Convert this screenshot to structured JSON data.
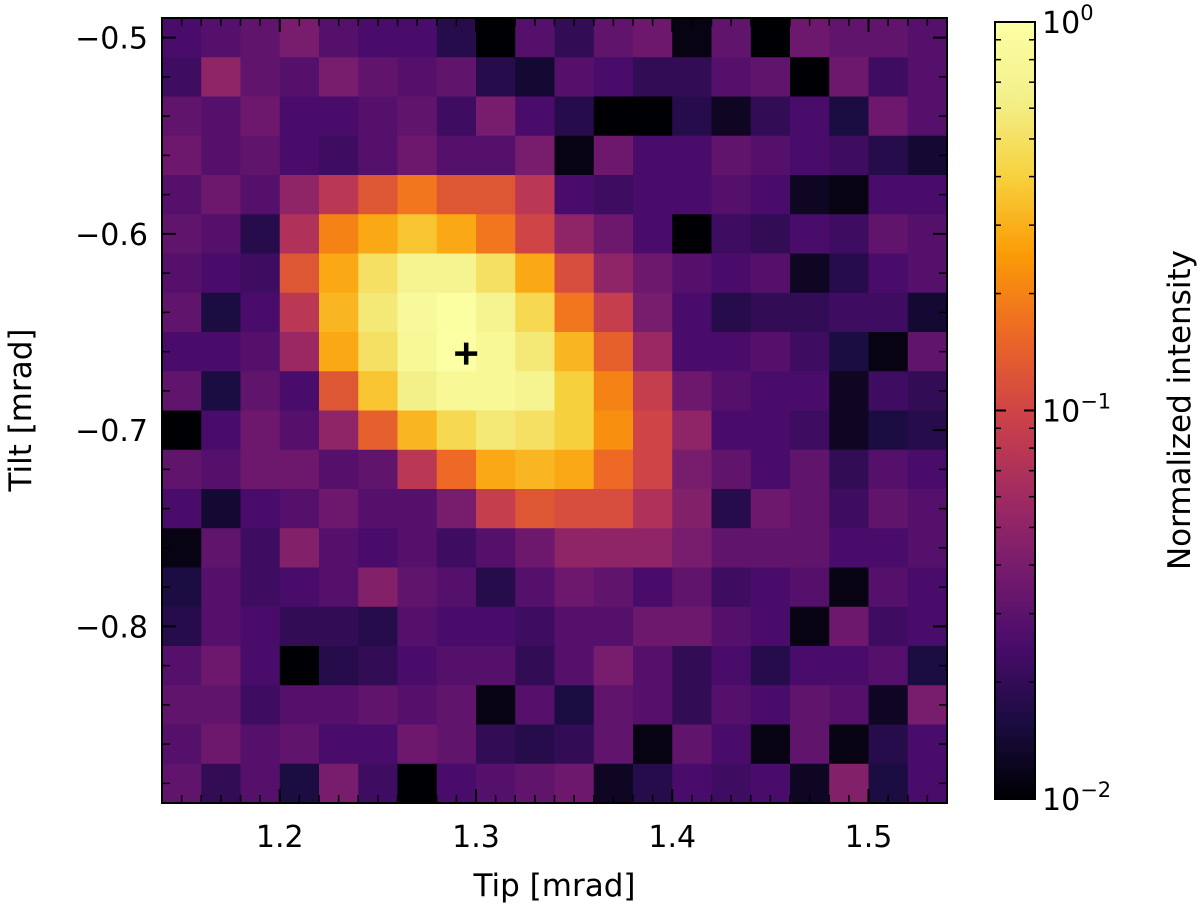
{
  "chart_data": {
    "type": "heatmap",
    "xlabel": "Tip [mrad]",
    "ylabel": "Tilt [mrad]",
    "xlim": [
      1.14,
      1.54
    ],
    "ylim": [
      -0.89,
      -0.49
    ],
    "x_ticks": [
      1.2,
      1.3,
      1.4,
      1.5
    ],
    "x_tick_labels": [
      "1.2",
      "1.3",
      "1.4",
      "1.5"
    ],
    "y_ticks": [
      -0.5,
      -0.6,
      -0.7,
      -0.8
    ],
    "y_tick_labels": [
      "−0.5",
      "−0.6",
      "−0.7",
      "−0.8"
    ],
    "grid": false,
    "colorscale": "inferno",
    "color_scale_type": "log",
    "colorbar": {
      "label": "Normalized intensity",
      "range": [
        0.01,
        1
      ],
      "ticks": [
        {
          "base": "10",
          "exp": "0",
          "value": 1
        },
        {
          "base": "10",
          "exp": "−1",
          "value": 0.1
        },
        {
          "base": "10",
          "exp": "−2",
          "value": 0.01
        }
      ]
    },
    "grid_shape": [
      20,
      20
    ],
    "x_centers": [
      1.15,
      1.17,
      1.19,
      1.21,
      1.23,
      1.25,
      1.27,
      1.29,
      1.31,
      1.33,
      1.35,
      1.37,
      1.39,
      1.41,
      1.43,
      1.45,
      1.47,
      1.49,
      1.51,
      1.53
    ],
    "y_centers": [
      -0.5,
      -0.52,
      -0.54,
      -0.56,
      -0.58,
      -0.6,
      -0.62,
      -0.64,
      -0.66,
      -0.68,
      -0.7,
      -0.72,
      -0.74,
      -0.76,
      -0.78,
      -0.8,
      -0.82,
      -0.84,
      -0.86,
      -0.88
    ],
    "values_log10_rows_top_to_bottom": [
      [
        -1.6,
        -1.55,
        -1.5,
        -1.4,
        -1.55,
        -1.6,
        -1.6,
        -1.75,
        -2.0,
        -1.55,
        -1.7,
        -1.5,
        -1.45,
        -1.95,
        -1.5,
        -2.0,
        -1.45,
        -1.5,
        -1.5,
        -1.55
      ],
      [
        -1.65,
        -1.3,
        -1.5,
        -1.55,
        -1.4,
        -1.5,
        -1.55,
        -1.5,
        -1.75,
        -1.85,
        -1.55,
        -1.6,
        -1.7,
        -1.7,
        -1.55,
        -1.5,
        -2.0,
        -1.45,
        -1.65,
        -1.55
      ],
      [
        -1.5,
        -1.55,
        -1.45,
        -1.6,
        -1.6,
        -1.55,
        -1.5,
        -1.65,
        -1.4,
        -1.6,
        -1.75,
        -2.0,
        -2.0,
        -1.75,
        -1.9,
        -1.7,
        -1.6,
        -1.8,
        -1.45,
        -1.55
      ],
      [
        -1.45,
        -1.55,
        -1.5,
        -1.6,
        -1.65,
        -1.55,
        -1.45,
        -1.55,
        -1.55,
        -1.4,
        -1.95,
        -1.45,
        -1.6,
        -1.6,
        -1.5,
        -1.55,
        -1.6,
        -1.65,
        -1.75,
        -1.85
      ],
      [
        -1.55,
        -1.45,
        -1.55,
        -1.3,
        -1.1,
        -0.9,
        -0.75,
        -0.9,
        -0.9,
        -1.1,
        -1.6,
        -1.65,
        -1.6,
        -1.6,
        -1.55,
        -1.6,
        -1.9,
        -1.95,
        -1.6,
        -1.6
      ],
      [
        -1.5,
        -1.55,
        -1.75,
        -1.15,
        -0.7,
        -0.55,
        -0.45,
        -0.55,
        -0.75,
        -1.0,
        -1.3,
        -1.45,
        -1.6,
        -2.0,
        -1.65,
        -1.7,
        -1.6,
        -1.65,
        -1.5,
        -1.55
      ],
      [
        -1.55,
        -1.6,
        -1.65,
        -0.9,
        -0.55,
        -0.3,
        -0.15,
        -0.15,
        -0.3,
        -0.55,
        -0.95,
        -1.3,
        -1.45,
        -1.55,
        -1.6,
        -1.55,
        -1.9,
        -1.75,
        -1.6,
        -1.55
      ],
      [
        -1.5,
        -1.8,
        -1.6,
        -1.1,
        -0.5,
        -0.25,
        -0.08,
        -0.02,
        -0.15,
        -0.35,
        -0.75,
        -1.05,
        -1.4,
        -1.6,
        -1.75,
        -1.7,
        -1.7,
        -1.65,
        -1.65,
        -1.85
      ],
      [
        -1.6,
        -1.6,
        -1.55,
        -1.25,
        -0.55,
        -0.3,
        -0.1,
        0.0,
        -0.1,
        -0.25,
        -0.5,
        -0.85,
        -1.25,
        -1.6,
        -1.6,
        -1.55,
        -1.65,
        -1.8,
        -1.95,
        -1.5
      ],
      [
        -1.5,
        -1.8,
        -1.5,
        -1.6,
        -0.9,
        -0.45,
        -0.2,
        -0.1,
        -0.1,
        -0.15,
        -0.4,
        -0.7,
        -1.05,
        -1.45,
        -1.55,
        -1.6,
        -1.6,
        -1.9,
        -1.65,
        -1.7
      ],
      [
        -2.0,
        -1.6,
        -1.45,
        -1.55,
        -1.3,
        -0.85,
        -0.5,
        -0.35,
        -0.25,
        -0.3,
        -0.4,
        -0.65,
        -1.0,
        -1.3,
        -1.6,
        -1.6,
        -1.65,
        -1.9,
        -1.8,
        -1.75
      ],
      [
        -1.5,
        -1.55,
        -1.45,
        -1.45,
        -1.55,
        -1.5,
        -1.1,
        -0.8,
        -0.55,
        -0.5,
        -0.55,
        -0.8,
        -1.0,
        -1.4,
        -1.5,
        -1.6,
        -1.5,
        -1.7,
        -1.55,
        -1.6
      ],
      [
        -1.6,
        -1.85,
        -1.6,
        -1.55,
        -1.45,
        -1.55,
        -1.55,
        -1.4,
        -1.05,
        -0.9,
        -0.95,
        -0.95,
        -1.15,
        -1.35,
        -1.75,
        -1.45,
        -1.5,
        -1.65,
        -1.5,
        -1.55
      ],
      [
        -1.95,
        -1.5,
        -1.65,
        -1.35,
        -1.55,
        -1.6,
        -1.55,
        -1.65,
        -1.55,
        -1.45,
        -1.3,
        -1.3,
        -1.3,
        -1.4,
        -1.5,
        -1.5,
        -1.5,
        -1.6,
        -1.6,
        -1.55
      ],
      [
        -1.8,
        -1.55,
        -1.65,
        -1.6,
        -1.55,
        -1.35,
        -1.5,
        -1.55,
        -1.75,
        -1.55,
        -1.45,
        -1.5,
        -1.6,
        -1.5,
        -1.65,
        -1.6,
        -1.55,
        -1.95,
        -1.55,
        -1.6
      ],
      [
        -1.75,
        -1.55,
        -1.6,
        -1.7,
        -1.7,
        -1.75,
        -1.55,
        -1.6,
        -1.6,
        -1.65,
        -1.55,
        -1.55,
        -1.45,
        -1.45,
        -1.55,
        -1.6,
        -1.95,
        -1.45,
        -1.65,
        -1.6
      ],
      [
        -1.55,
        -1.45,
        -1.6,
        -2.0,
        -1.75,
        -1.7,
        -1.6,
        -1.55,
        -1.55,
        -1.7,
        -1.55,
        -1.4,
        -1.55,
        -1.7,
        -1.6,
        -1.75,
        -1.6,
        -1.6,
        -1.55,
        -1.8
      ],
      [
        -1.5,
        -1.5,
        -1.65,
        -1.55,
        -1.55,
        -1.5,
        -1.55,
        -1.5,
        -1.95,
        -1.55,
        -1.8,
        -1.5,
        -1.55,
        -1.7,
        -1.55,
        -1.6,
        -1.5,
        -1.55,
        -1.9,
        -1.4
      ],
      [
        -1.55,
        -1.45,
        -1.55,
        -1.5,
        -1.6,
        -1.6,
        -1.45,
        -1.5,
        -1.7,
        -1.75,
        -1.7,
        -1.5,
        -1.95,
        -1.5,
        -1.6,
        -1.95,
        -1.5,
        -1.95,
        -1.75,
        -1.6
      ],
      [
        -1.5,
        -1.7,
        -1.55,
        -1.8,
        -1.4,
        -1.65,
        -2.0,
        -1.6,
        -1.55,
        -1.5,
        -1.45,
        -1.9,
        -1.75,
        -1.6,
        -1.65,
        -1.6,
        -1.9,
        -1.35,
        -1.8,
        -1.6
      ]
    ],
    "marker": {
      "shape": "plus",
      "x": 1.295,
      "y": -0.661
    }
  }
}
